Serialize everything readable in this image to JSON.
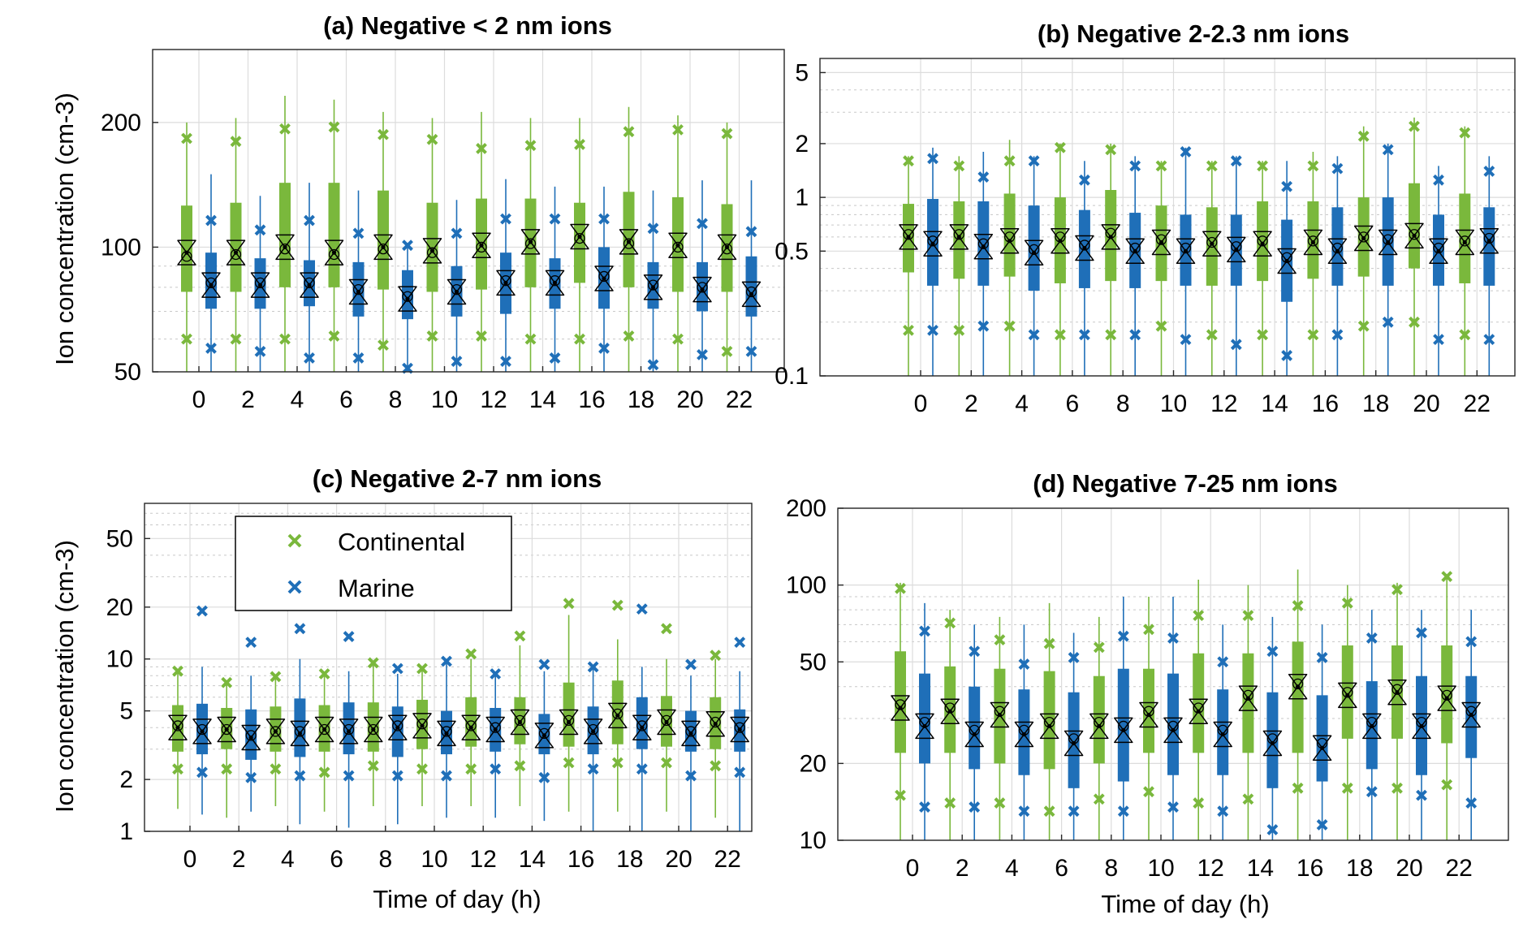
{
  "colors": {
    "continental": "#7ab83c",
    "marine": "#1f6fb8"
  },
  "legend": {
    "items": [
      {
        "label": "Continental",
        "color": "#7ab83c"
      },
      {
        "label": "Marine",
        "color": "#1f6fb8"
      }
    ]
  },
  "chart_data": [
    {
      "type": "box",
      "title": "(a) Negative < 2 nm ions",
      "ylabel": "Ion concentration (cm-3)",
      "xlabel": "",
      "yscale": "log",
      "ylim": [
        50,
        300
      ],
      "yticks": [
        50,
        100,
        200
      ],
      "categories": [
        "0",
        "2",
        "4",
        "6",
        "8",
        "10",
        "12",
        "14",
        "16",
        "18",
        "20",
        "22"
      ],
      "series": [
        {
          "name": "Continental",
          "wlo": [
            50,
            50,
            50,
            50,
            50,
            50,
            50,
            50,
            50,
            50,
            50,
            50
          ],
          "q1": [
            78,
            78,
            80,
            80,
            79,
            78,
            79,
            80,
            82,
            80,
            78,
            78
          ],
          "median": [
            97,
            97,
            100,
            97,
            100,
            98,
            101,
            103,
            106,
            103,
            101,
            100
          ],
          "mean": [
            95,
            96,
            99,
            96,
            99,
            97,
            100,
            102,
            105,
            102,
            100,
            99
          ],
          "q3": [
            126,
            128,
            143,
            143,
            137,
            128,
            131,
            131,
            128,
            136,
            132,
            127
          ],
          "whi": [
            200,
            205,
            232,
            227,
            212,
            205,
            212,
            205,
            205,
            218,
            208,
            200
          ],
          "p5": [
            60,
            60,
            60,
            61,
            58,
            61,
            61,
            60,
            60,
            61,
            60,
            56
          ],
          "p95": [
            183,
            180,
            193,
            195,
            187,
            182,
            173,
            176,
            177,
            190,
            192,
            188
          ]
        },
        {
          "name": "Marine",
          "wlo": [
            50,
            50,
            50,
            50,
            50,
            50,
            50,
            50,
            50,
            50,
            50,
            50
          ],
          "q1": [
            71,
            71,
            72,
            68,
            67,
            68,
            69,
            71,
            71,
            71,
            70,
            68
          ],
          "median": [
            81,
            81,
            81,
            78,
            75,
            78,
            82,
            82,
            84,
            80,
            79,
            77
          ],
          "mean": [
            82,
            82,
            82,
            79,
            76,
            79,
            83,
            83,
            85,
            81,
            80,
            78
          ],
          "q3": [
            97,
            94,
            93,
            92,
            88,
            90,
            97,
            94,
            100,
            92,
            92,
            95
          ],
          "whi": [
            150,
            133,
            143,
            137,
            101,
            130,
            146,
            140,
            140,
            137,
            145,
            145
          ],
          "p5": [
            57,
            56,
            54,
            54,
            51,
            53,
            53,
            54,
            57,
            52,
            55,
            56
          ],
          "p95": [
            116,
            110,
            116,
            108,
            101,
            108,
            117,
            117,
            117,
            111,
            114,
            109
          ]
        }
      ]
    },
    {
      "type": "box",
      "title": "(b) Negative 2-2.3 nm ions",
      "ylabel": "",
      "xlabel": "",
      "yscale": "log",
      "ylim": [
        0.1,
        6
      ],
      "yticks": [
        0.1,
        0.5,
        1,
        2,
        5
      ],
      "categories": [
        "0",
        "2",
        "4",
        "6",
        "8",
        "10",
        "12",
        "14",
        "16",
        "18",
        "20",
        "22"
      ],
      "series": [
        {
          "name": "Continental",
          "wlo": [
            0.1,
            0.1,
            0.1,
            0.1,
            0.1,
            0.1,
            0.1,
            0.1,
            0.1,
            0.1,
            0.1,
            0.1
          ],
          "q1": [
            0.38,
            0.35,
            0.36,
            0.33,
            0.34,
            0.34,
            0.32,
            0.34,
            0.35,
            0.36,
            0.4,
            0.33
          ],
          "median": [
            0.6,
            0.6,
            0.57,
            0.57,
            0.6,
            0.56,
            0.55,
            0.55,
            0.56,
            0.59,
            0.61,
            0.56
          ],
          "mean": [
            0.62,
            0.62,
            0.6,
            0.6,
            0.63,
            0.58,
            0.56,
            0.57,
            0.57,
            0.6,
            0.62,
            0.57
          ],
          "q3": [
            0.92,
            0.95,
            1.05,
            1.0,
            1.1,
            0.9,
            0.88,
            0.95,
            0.95,
            1.0,
            1.2,
            1.05
          ],
          "whi": [
            1.7,
            1.7,
            2.1,
            2.0,
            2.0,
            1.6,
            1.6,
            1.6,
            1.8,
            2.5,
            2.8,
            2.5
          ],
          "p5": [
            0.18,
            0.18,
            0.19,
            0.17,
            0.17,
            0.19,
            0.17,
            0.17,
            0.17,
            0.19,
            0.2,
            0.17
          ],
          "p95": [
            1.6,
            1.5,
            1.6,
            1.9,
            1.85,
            1.5,
            1.5,
            1.5,
            1.5,
            2.2,
            2.5,
            2.3
          ]
        },
        {
          "name": "Marine",
          "wlo": [
            0.1,
            0.1,
            0.1,
            0.1,
            0.1,
            0.1,
            0.1,
            0.1,
            0.1,
            0.1,
            0.1,
            0.1
          ],
          "q1": [
            0.32,
            0.32,
            0.3,
            0.31,
            0.31,
            0.32,
            0.32,
            0.26,
            0.32,
            0.32,
            0.32,
            0.32
          ],
          "median": [
            0.55,
            0.53,
            0.49,
            0.52,
            0.5,
            0.5,
            0.51,
            0.44,
            0.5,
            0.56,
            0.5,
            0.57
          ],
          "mean": [
            0.57,
            0.55,
            0.51,
            0.54,
            0.52,
            0.52,
            0.53,
            0.46,
            0.52,
            0.58,
            0.52,
            0.59
          ],
          "q3": [
            0.98,
            0.95,
            0.9,
            0.85,
            0.82,
            0.8,
            0.8,
            0.75,
            0.88,
            1.0,
            0.8,
            0.88
          ],
          "whi": [
            1.9,
            1.8,
            1.7,
            1.6,
            1.7,
            1.9,
            1.7,
            1.6,
            1.7,
            2.0,
            1.5,
            1.7
          ],
          "p5": [
            0.18,
            0.19,
            0.17,
            0.17,
            0.17,
            0.16,
            0.15,
            0.13,
            0.17,
            0.2,
            0.16,
            0.16
          ],
          "p95": [
            1.65,
            1.3,
            1.6,
            1.25,
            1.5,
            1.8,
            1.6,
            1.15,
            1.45,
            1.85,
            1.25,
            1.4
          ]
        }
      ]
    },
    {
      "type": "box",
      "title": "(c) Negative 2-7 nm ions",
      "ylabel": "Ion concentration (cm-3)",
      "xlabel": "Time of day (h)",
      "yscale": "log",
      "ylim": [
        1,
        80
      ],
      "yticks": [
        1,
        2,
        5,
        10,
        20,
        50
      ],
      "categories": [
        "0",
        "2",
        "4",
        "6",
        "8",
        "10",
        "12",
        "14",
        "16",
        "18",
        "20",
        "22"
      ],
      "series": [
        {
          "name": "Continental",
          "wlo": [
            1.35,
            1.2,
            1.4,
            1.3,
            1.4,
            1.4,
            1.4,
            1.4,
            1.3,
            1.3,
            1.3,
            1.2
          ],
          "q1": [
            2.9,
            3.0,
            2.9,
            2.9,
            2.9,
            3.0,
            3.1,
            3.2,
            3.1,
            3.2,
            3.1,
            3.0
          ],
          "median": [
            4.0,
            3.9,
            3.8,
            3.9,
            3.9,
            4.1,
            4.0,
            4.3,
            4.3,
            4.7,
            4.3,
            4.2
          ],
          "mean": [
            4.1,
            3.9,
            3.8,
            3.9,
            3.9,
            4.2,
            4.1,
            4.4,
            4.4,
            4.8,
            4.4,
            4.3
          ],
          "q3": [
            5.4,
            5.2,
            5.3,
            5.4,
            5.6,
            5.8,
            6.0,
            6.0,
            7.3,
            7.5,
            6.1,
            6.0
          ],
          "whi": [
            8.5,
            7.5,
            7.8,
            8.2,
            9.5,
            9.0,
            10.0,
            12.0,
            18.0,
            13.0,
            10.0,
            10.0
          ],
          "p5": [
            2.3,
            2.3,
            2.3,
            2.2,
            2.4,
            2.3,
            2.3,
            2.4,
            2.5,
            2.5,
            2.5,
            2.4
          ],
          "p95": [
            8.5,
            7.3,
            7.9,
            8.2,
            9.5,
            8.8,
            10.7,
            13.6,
            21.0,
            20.5,
            15.0,
            10.5
          ]
        },
        {
          "name": "Marine",
          "wlo": [
            1.25,
            1.3,
            1.1,
            1.05,
            1.1,
            1.2,
            1.2,
            1.15,
            1.0,
            1.0,
            1.0,
            1.0
          ],
          "q1": [
            2.8,
            2.6,
            2.7,
            2.8,
            2.7,
            2.8,
            2.9,
            2.8,
            2.8,
            3.0,
            2.9,
            2.9
          ],
          "median": [
            3.8,
            3.5,
            3.7,
            3.8,
            4.0,
            3.7,
            3.9,
            3.6,
            3.8,
            4.0,
            3.7,
            3.9
          ],
          "mean": [
            3.9,
            3.6,
            3.8,
            3.9,
            4.1,
            3.8,
            4.0,
            3.7,
            3.9,
            4.1,
            3.8,
            4.0
          ],
          "q3": [
            5.5,
            5.1,
            5.9,
            5.6,
            5.3,
            5.0,
            5.2,
            4.8,
            5.3,
            6.0,
            5.0,
            5.1
          ],
          "whi": [
            9.0,
            8.0,
            10.0,
            8.5,
            8.2,
            9.5,
            8.0,
            8.5,
            9.0,
            9.0,
            8.0,
            8.5
          ],
          "p5": [
            2.2,
            2.05,
            2.1,
            2.1,
            2.1,
            2.1,
            2.3,
            2.05,
            2.3,
            2.3,
            2.1,
            2.2
          ],
          "p95": [
            19.0,
            12.5,
            15.0,
            13.5,
            8.8,
            9.7,
            8.2,
            9.3,
            9.0,
            19.5,
            9.3,
            12.5
          ]
        }
      ]
    },
    {
      "type": "box",
      "title": "(d) Negative 7-25 nm ions",
      "ylabel": "",
      "xlabel": "Time of day (h)",
      "yscale": "log",
      "ylim": [
        10,
        200
      ],
      "yticks": [
        10,
        20,
        50,
        100,
        200
      ],
      "categories": [
        "0",
        "2",
        "4",
        "6",
        "8",
        "10",
        "12",
        "14",
        "16",
        "18",
        "20",
        "22"
      ],
      "series": [
        {
          "name": "Continental",
          "wlo": [
            10,
            10,
            10,
            10,
            10,
            10,
            10,
            10,
            10,
            10,
            10,
            10
          ],
          "q1": [
            22,
            22,
            20,
            19,
            20,
            22,
            22,
            22,
            22,
            25,
            25,
            24
          ],
          "median": [
            33,
            32,
            31,
            28,
            28,
            31,
            32,
            36,
            40,
            37,
            38,
            36
          ],
          "mean": [
            34,
            33,
            32,
            29,
            29,
            32,
            33,
            37,
            41,
            38,
            39,
            37
          ],
          "q3": [
            55,
            48,
            47,
            46,
            44,
            47,
            54,
            54,
            60,
            58,
            58,
            58
          ],
          "whi": [
            102,
            80,
            75,
            85,
            75,
            90,
            105,
            100,
            115,
            100,
            102,
            110
          ],
          "p5": [
            15,
            14,
            14,
            13,
            14.5,
            15.5,
            14,
            14.5,
            16,
            16,
            16,
            16.5
          ],
          "p95": [
            97,
            71,
            61,
            59,
            57,
            67,
            76,
            76,
            83,
            85,
            96,
            108
          ]
        },
        {
          "name": "Marine",
          "wlo": [
            10,
            10,
            10,
            10,
            10,
            10,
            10,
            10,
            10,
            10,
            10,
            10
          ],
          "q1": [
            20,
            19,
            18,
            16,
            17,
            18,
            18,
            16,
            17,
            19,
            18,
            21
          ],
          "median": [
            28,
            26,
            26,
            24,
            27,
            27,
            26,
            24,
            23,
            28,
            28,
            31
          ],
          "mean": [
            29,
            27,
            27,
            25,
            28,
            28,
            27,
            25,
            24,
            29,
            29,
            32
          ],
          "q3": [
            45,
            40,
            39,
            38,
            47,
            45,
            39,
            38,
            37,
            42,
            44,
            44
          ],
          "whi": [
            85,
            70,
            70,
            65,
            90,
            90,
            70,
            75,
            70,
            80,
            80,
            80
          ],
          "p5": [
            13.5,
            13.5,
            13,
            13,
            13,
            13.5,
            13,
            11,
            11.5,
            15.5,
            15,
            14
          ],
          "p95": [
            66,
            55,
            49,
            52,
            63,
            62,
            50,
            55,
            52,
            62,
            65,
            60
          ]
        }
      ]
    }
  ]
}
